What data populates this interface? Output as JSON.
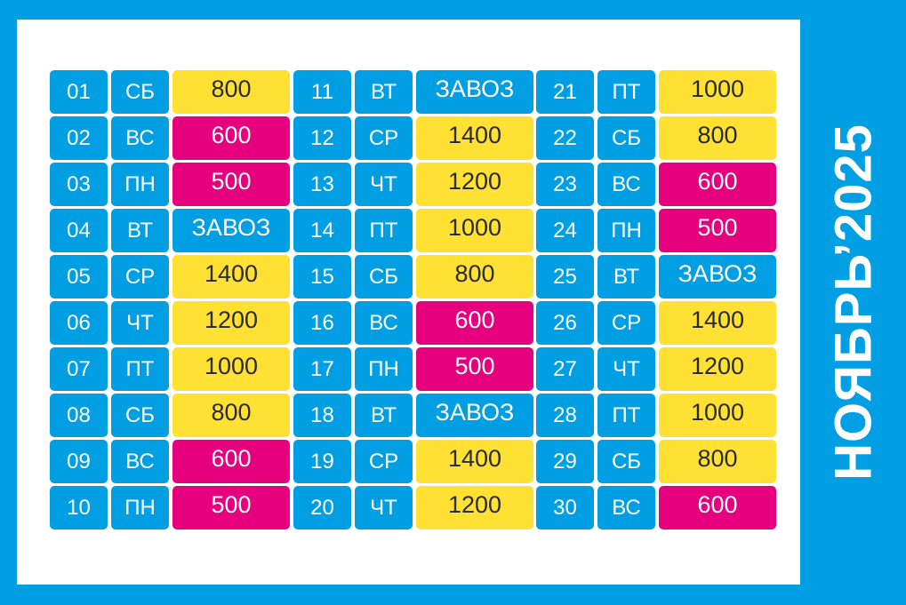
{
  "title": "НОЯБРЬ’2025",
  "colors": {
    "background": "#009fe3",
    "panel": "#ffffff",
    "blue": "#009fe3",
    "yellow": "#ffe133",
    "magenta": "#e6007e"
  },
  "groups": [
    {
      "rows": [
        {
          "day": "01",
          "dow": "СБ",
          "value": "800",
          "color": "yellow"
        },
        {
          "day": "02",
          "dow": "ВС",
          "value": "600",
          "color": "magenta"
        },
        {
          "day": "03",
          "dow": "ПН",
          "value": "500",
          "color": "magenta"
        },
        {
          "day": "04",
          "dow": "ВТ",
          "value": "ЗАВОЗ",
          "color": "blue"
        },
        {
          "day": "05",
          "dow": "СР",
          "value": "1400",
          "color": "yellow"
        },
        {
          "day": "06",
          "dow": "ЧТ",
          "value": "1200",
          "color": "yellow"
        },
        {
          "day": "07",
          "dow": "ПТ",
          "value": "1000",
          "color": "yellow"
        },
        {
          "day": "08",
          "dow": "СБ",
          "value": "800",
          "color": "yellow"
        },
        {
          "day": "09",
          "dow": "ВС",
          "value": "600",
          "color": "magenta"
        },
        {
          "day": "10",
          "dow": "ПН",
          "value": "500",
          "color": "magenta"
        }
      ]
    },
    {
      "rows": [
        {
          "day": "11",
          "dow": "ВТ",
          "value": "ЗАВОЗ",
          "color": "blue"
        },
        {
          "day": "12",
          "dow": "СР",
          "value": "1400",
          "color": "yellow"
        },
        {
          "day": "13",
          "dow": "ЧТ",
          "value": "1200",
          "color": "yellow"
        },
        {
          "day": "14",
          "dow": "ПТ",
          "value": "1000",
          "color": "yellow"
        },
        {
          "day": "15",
          "dow": "СБ",
          "value": "800",
          "color": "yellow"
        },
        {
          "day": "16",
          "dow": "ВС",
          "value": "600",
          "color": "magenta"
        },
        {
          "day": "17",
          "dow": "ПН",
          "value": "500",
          "color": "magenta"
        },
        {
          "day": "18",
          "dow": "ВТ",
          "value": "ЗАВОЗ",
          "color": "blue"
        },
        {
          "day": "19",
          "dow": "СР",
          "value": "1400",
          "color": "yellow"
        },
        {
          "day": "20",
          "dow": "ЧТ",
          "value": "1200",
          "color": "yellow"
        }
      ]
    },
    {
      "rows": [
        {
          "day": "21",
          "dow": "ПТ",
          "value": "1000",
          "color": "yellow"
        },
        {
          "day": "22",
          "dow": "СБ",
          "value": "800",
          "color": "yellow"
        },
        {
          "day": "23",
          "dow": "ВС",
          "value": "600",
          "color": "magenta"
        },
        {
          "day": "24",
          "dow": "ПН",
          "value": "500",
          "color": "magenta"
        },
        {
          "day": "25",
          "dow": "ВТ",
          "value": "ЗАВОЗ",
          "color": "blue"
        },
        {
          "day": "26",
          "dow": "СР",
          "value": "1400",
          "color": "yellow"
        },
        {
          "day": "27",
          "dow": "ЧТ",
          "value": "1200",
          "color": "yellow"
        },
        {
          "day": "28",
          "dow": "ПТ",
          "value": "1000",
          "color": "yellow"
        },
        {
          "day": "29",
          "dow": "СБ",
          "value": "800",
          "color": "yellow"
        },
        {
          "day": "30",
          "dow": "ВС",
          "value": "600",
          "color": "magenta"
        }
      ]
    }
  ]
}
